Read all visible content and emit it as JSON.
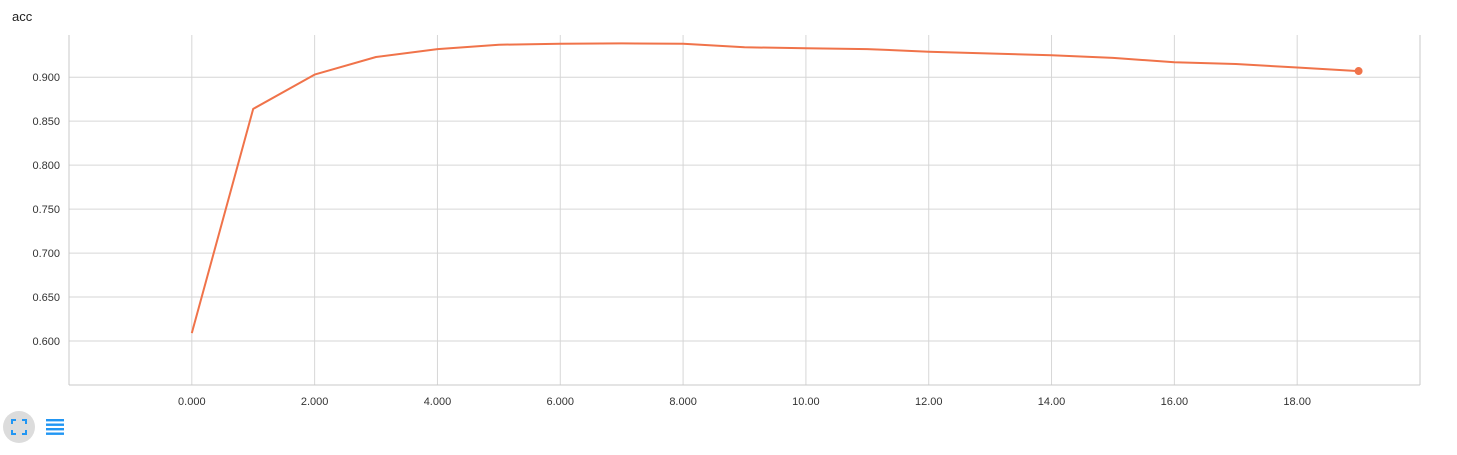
{
  "chart_data": {
    "type": "line",
    "title": "acc",
    "xlabel": "",
    "ylabel": "",
    "xlim": [
      -2.0,
      20.0
    ],
    "ylim": [
      0.55,
      0.948
    ],
    "x_ticks": [
      {
        "value": 0,
        "label": "0.000"
      },
      {
        "value": 2,
        "label": "2.000"
      },
      {
        "value": 4,
        "label": "4.000"
      },
      {
        "value": 6,
        "label": "6.000"
      },
      {
        "value": 8,
        "label": "8.000"
      },
      {
        "value": 10,
        "label": "10.00"
      },
      {
        "value": 12,
        "label": "12.00"
      },
      {
        "value": 14,
        "label": "14.00"
      },
      {
        "value": 16,
        "label": "16.00"
      },
      {
        "value": 18,
        "label": "18.00"
      }
    ],
    "y_ticks": [
      {
        "value": 0.6,
        "label": "0.600"
      },
      {
        "value": 0.65,
        "label": "0.650"
      },
      {
        "value": 0.7,
        "label": "0.700"
      },
      {
        "value": 0.75,
        "label": "0.750"
      },
      {
        "value": 0.8,
        "label": "0.800"
      },
      {
        "value": 0.85,
        "label": "0.850"
      },
      {
        "value": 0.9,
        "label": "0.900"
      }
    ],
    "grid": true,
    "series": [
      {
        "color": "#f0734a",
        "x": [
          0,
          1,
          2,
          3,
          4,
          5,
          6,
          7,
          8,
          9,
          10,
          11,
          12,
          13,
          14,
          15,
          16,
          17,
          18,
          19
        ],
        "y": [
          0.609,
          0.864,
          0.903,
          0.923,
          0.932,
          0.937,
          0.938,
          0.9385,
          0.938,
          0.934,
          0.933,
          0.932,
          0.929,
          0.927,
          0.925,
          0.922,
          0.917,
          0.915,
          0.911,
          0.907
        ]
      }
    ]
  },
  "toolbar": {
    "buttons": [
      {
        "icon": "fit-domain-icon",
        "active": true
      },
      {
        "icon": "toggle-log-scale-icon",
        "active": false
      }
    ],
    "accent": "#2196f3"
  }
}
